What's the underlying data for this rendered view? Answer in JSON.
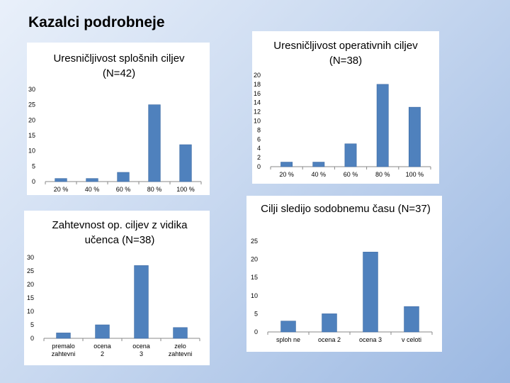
{
  "slide": {
    "title": "Kazalci podrobneje"
  },
  "colors": {
    "bar": "#4f81bd",
    "bar_edge": "#3d6aa3",
    "axis": "#888888"
  },
  "chart_data": [
    {
      "type": "bar",
      "title": "Uresničljivost splošnih ciljev (N=42)",
      "categories": [
        "20 %",
        "40 %",
        "60 %",
        "80 %",
        "100 %"
      ],
      "values": [
        1,
        1,
        3,
        25,
        12
      ],
      "ylim": [
        0,
        30
      ],
      "yticks": [
        0,
        5,
        10,
        15,
        20,
        25,
        30
      ],
      "xlabel": "",
      "ylabel": "",
      "grid": false
    },
    {
      "type": "bar",
      "title": "Uresničljivost operativnih ciljev (N=38)",
      "categories": [
        "20 %",
        "40 %",
        "60 %",
        "80 %",
        "100 %"
      ],
      "values": [
        1,
        1,
        5,
        18,
        13
      ],
      "ylim": [
        0,
        20
      ],
      "yticks": [
        0,
        2,
        4,
        6,
        8,
        10,
        12,
        14,
        16,
        18,
        20
      ],
      "xlabel": "",
      "ylabel": "",
      "grid": false
    },
    {
      "type": "bar",
      "title": "Zahtevnost op. ciljev z vidika učenca (N=38)",
      "categories": [
        "premalo zahtevni",
        "ocena 2",
        "ocena 3",
        "zelo zahtevni"
      ],
      "values": [
        2,
        5,
        27,
        4
      ],
      "ylim": [
        0,
        30
      ],
      "yticks": [
        0,
        5,
        10,
        15,
        20,
        25,
        30
      ],
      "xlabel": "",
      "ylabel": "",
      "grid": false
    },
    {
      "type": "bar",
      "title": "Cilji sledijo sodobnemu času (N=37)",
      "categories": [
        "sploh ne",
        "ocena 2",
        "ocena 3",
        "v celoti"
      ],
      "values": [
        3,
        5,
        22,
        7
      ],
      "ylim": [
        0,
        25
      ],
      "yticks": [
        0,
        5,
        10,
        15,
        20,
        25
      ],
      "xlabel": "",
      "ylabel": "",
      "grid": false
    }
  ]
}
